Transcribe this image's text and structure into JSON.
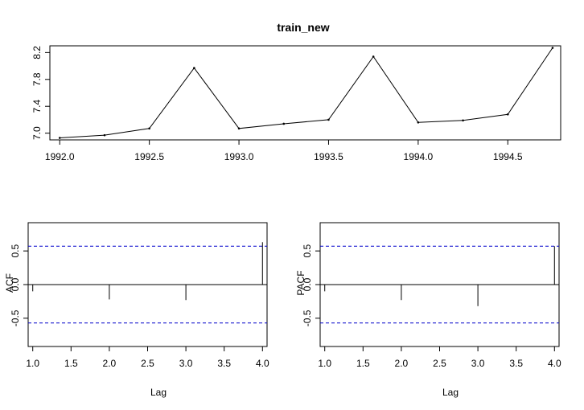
{
  "chart_data": [
    {
      "type": "line",
      "title": "train_new",
      "xlabel": "",
      "ylabel": "",
      "x": [
        1992.0,
        1992.25,
        1992.5,
        1992.75,
        1993.0,
        1993.25,
        1993.5,
        1993.75,
        1994.0,
        1994.25,
        1994.5,
        1994.75
      ],
      "y": [
        6.93,
        6.97,
        7.07,
        7.97,
        7.07,
        7.14,
        7.2,
        8.14,
        7.16,
        7.19,
        7.28,
        8.27
      ],
      "xlim": [
        1991.945,
        1994.795
      ],
      "ylim": [
        6.9,
        8.3
      ],
      "xticks": [
        "1992.0",
        "1992.5",
        "1993.0",
        "1993.5",
        "1994.0",
        "1994.5"
      ],
      "yticks": [
        "7.0",
        "7.4",
        "7.8",
        "8.2"
      ],
      "grid": false,
      "markers": true
    },
    {
      "type": "bar",
      "title": "",
      "xlabel": "Lag",
      "ylabel": "ACF",
      "x": [
        1,
        2,
        3,
        4
      ],
      "values": [
        -0.1,
        -0.22,
        -0.23,
        0.63
      ],
      "confidence_limit": 0.57,
      "xlim": [
        0.94,
        4.06
      ],
      "ylim": [
        -0.92,
        0.92
      ],
      "xticks": [
        "1.0",
        "1.5",
        "2.0",
        "2.5",
        "3.0",
        "3.5",
        "4.0"
      ],
      "yticks": [
        "-0.5",
        "0.0",
        "0.5"
      ],
      "grid": false
    },
    {
      "type": "bar",
      "title": "",
      "xlabel": "Lag",
      "ylabel": "PACF",
      "x": [
        1,
        2,
        3,
        4
      ],
      "values": [
        -0.1,
        -0.23,
        -0.32,
        0.57
      ],
      "confidence_limit": 0.57,
      "xlim": [
        0.94,
        4.06
      ],
      "ylim": [
        -0.92,
        0.92
      ],
      "xticks": [
        "1.0",
        "1.5",
        "2.0",
        "2.5",
        "3.0",
        "3.5",
        "4.0"
      ],
      "yticks": [
        "-0.5",
        "0.0",
        "0.5"
      ],
      "grid": false
    }
  ],
  "colors": {
    "series": "#000000",
    "confidence": "#0000cc"
  }
}
